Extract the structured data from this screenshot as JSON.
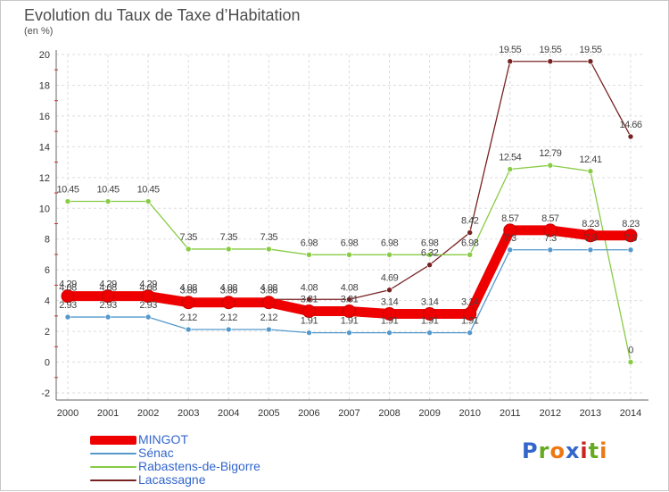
{
  "title": "Evolution du Taux de Taxe d’Habitation",
  "unit": "(en %)",
  "logo": [
    "P",
    "r",
    "o",
    "x",
    "i",
    "t",
    "i"
  ],
  "logo_colors": [
    "#3366cc",
    "#66aa22",
    "#ee7711",
    "#3366cc",
    "#cc2222",
    "#66aa22",
    "#ee7711"
  ],
  "chart_data": {
    "type": "line",
    "title": "Evolution du Taux de Taxe d’Habitation",
    "ylabel": "(en %)",
    "xlabel": "",
    "ylim": [
      -2,
      20
    ],
    "yticks": [
      -2,
      0,
      2,
      4,
      6,
      8,
      10,
      12,
      14,
      16,
      18,
      20
    ],
    "grid": true,
    "legend_position": "bottom-left",
    "categories": [
      "2000",
      "2001",
      "2002",
      "2003",
      "2004",
      "2005",
      "2006",
      "2007",
      "2008",
      "2009",
      "2010",
      "2011",
      "2012",
      "2013",
      "2014"
    ],
    "series": [
      {
        "name": "MINGOT",
        "color": "#ee0000",
        "values": [
          4.29,
          4.29,
          4.29,
          3.88,
          3.88,
          3.88,
          3.31,
          3.31,
          3.14,
          3.14,
          3.14,
          8.57,
          8.57,
          8.23,
          8.23
        ],
        "labels": [
          "4.29",
          "4.29",
          "4.29",
          "3.88",
          "3.88",
          "3.88",
          "3.31",
          "3.31",
          "3.14",
          "3.14",
          "3.14",
          "8.57",
          "8.57",
          "8.23",
          "8.23"
        ]
      },
      {
        "name": "Sénac",
        "color": "#5599cc",
        "values": [
          2.93,
          2.93,
          2.93,
          2.12,
          2.12,
          2.12,
          1.91,
          1.91,
          1.91,
          1.91,
          1.91,
          7.3,
          7.3,
          7.3,
          7.3
        ],
        "labels": [
          "2.93",
          "2.93",
          "2.93",
          "2.12",
          "2.12",
          "2.12",
          "1.91",
          "1.91",
          "1.91",
          "1.91",
          "1.91",
          "7.3",
          "7.3",
          "7.3",
          "7.3"
        ]
      },
      {
        "name": "Rabastens-de-Bigorre",
        "color": "#88cc44",
        "values": [
          10.45,
          10.45,
          10.45,
          7.35,
          7.35,
          7.35,
          6.98,
          6.98,
          6.98,
          6.98,
          6.98,
          12.54,
          12.79,
          12.41,
          0
        ],
        "labels": [
          "10.45",
          "10.45",
          "10.45",
          "7.35",
          "7.35",
          "7.35",
          "6.98",
          "6.98",
          "6.98",
          "6.98",
          "6.98",
          "12.54",
          "12.79",
          "12.41",
          "0"
        ]
      },
      {
        "name": "Lacassagne",
        "color": "#772222",
        "values": [
          4.08,
          4.08,
          4.08,
          4.08,
          4.08,
          4.08,
          4.08,
          4.08,
          4.69,
          6.32,
          8.42,
          19.55,
          19.55,
          19.55,
          14.66
        ],
        "labels": [
          "4.08",
          "4.08",
          "4.08",
          "4.08",
          "4.08",
          "4.08",
          "4.08",
          "4.08",
          "4.69",
          "6.32",
          "8.42",
          "19.55",
          "19.55",
          "19.55",
          "14.66"
        ]
      }
    ]
  }
}
